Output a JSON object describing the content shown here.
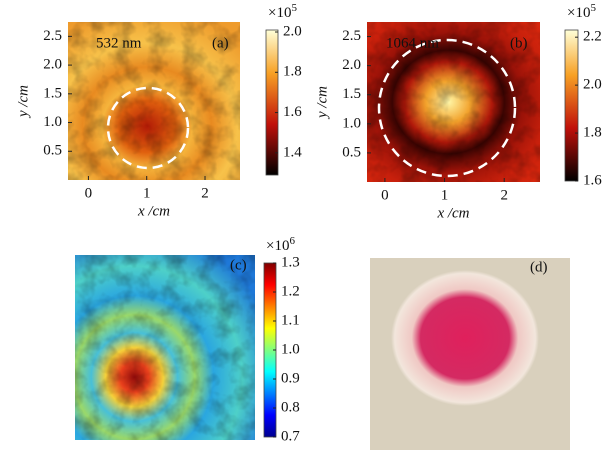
{
  "chart_data": [
    {
      "type": "heatmap",
      "annotations": [
        "532 nm",
        "(a)"
      ],
      "xlabel": "x /cm",
      "ylabel": "y /cm",
      "xlim": [
        -0.35,
        2.6
      ],
      "xticks": [
        0,
        1,
        2
      ],
      "ylim": [
        0,
        2.75
      ],
      "yticks": [
        0.5,
        {
          "value": 1,
          "label": "1.0"
        },
        1.5,
        {
          "value": 2,
          "label": "2.0"
        },
        2.5
      ],
      "colormap": "hot",
      "clim": [
        1.29,
        2.01
      ],
      "cticks": [
        {
          "value": 1.4,
          "label": "1.4"
        },
        1.6,
        1.8,
        {
          "value": 2,
          "label": "2.0"
        }
      ],
      "colorbar_multiplier": {
        "base": "×10",
        "exponent": "5"
      }
    },
    {
      "type": "heatmap",
      "annotations": [
        "1064 nm",
        "(b)"
      ],
      "xlabel": "x /cm",
      "ylabel": "y /cm",
      "xlim": [
        -0.3,
        2.6
      ],
      "xticks": [
        0,
        1,
        2
      ],
      "ylim": [
        0,
        2.75
      ],
      "yticks": [
        0.5,
        {
          "value": 1,
          "label": "1.0"
        },
        1.5,
        {
          "value": 2,
          "label": "2.0"
        },
        2.5
      ],
      "colormap": "hot",
      "clim": [
        1.6,
        2.23
      ],
      "cticks": [
        1.6,
        1.8,
        {
          "value": 2,
          "label": "2.0"
        },
        2.2
      ],
      "colorbar_multiplier": {
        "base": "×10",
        "exponent": "5"
      }
    },
    {
      "type": "heatmap",
      "annotations": [
        "(c)"
      ],
      "colormap": "jet",
      "clim": [
        0.7,
        1.3
      ],
      "cticks": [
        0.7,
        0.8,
        0.9,
        {
          "value": 1,
          "label": "1.0"
        },
        1.1,
        1.2,
        1.3
      ],
      "colorbar_multiplier": {
        "base": "×10",
        "exponent": "6"
      }
    }
  ],
  "photo_panel": {
    "label": "(d)"
  }
}
